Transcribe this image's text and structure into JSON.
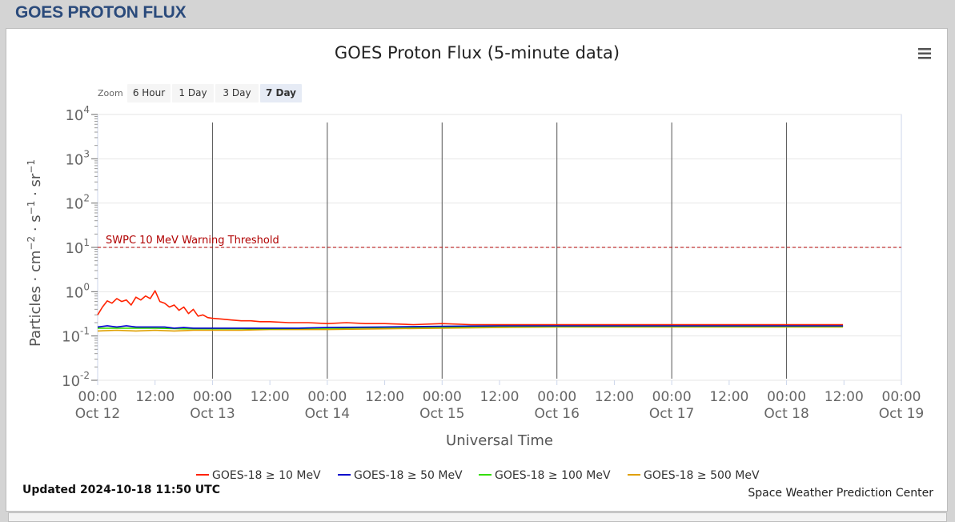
{
  "page": {
    "heading": "GOES PROTON FLUX"
  },
  "menu": {
    "icon": "hamburger-menu-icon"
  },
  "zoom": {
    "label": "Zoom",
    "buttons": [
      {
        "label": "6 Hour",
        "active": false
      },
      {
        "label": "1 Day",
        "active": false
      },
      {
        "label": "3 Day",
        "active": false
      },
      {
        "label": "7 Day",
        "active": true
      }
    ]
  },
  "footer": {
    "updated": "Updated 2024-10-18 11:50 UTC",
    "credit": "Space Weather Prediction Center"
  },
  "chart_data": {
    "type": "line",
    "title": "GOES Proton Flux (5-minute data)",
    "xlabel": "Universal Time",
    "ylabel_parts": {
      "base": "Particles · cm",
      "exp1": "−2",
      "mid1": " · s",
      "exp2": "−1",
      "mid2": " · sr",
      "exp3": "−1"
    },
    "y_scale": "log",
    "ylim": [
      0.01,
      10000
    ],
    "y_ticks": [
      {
        "base": "10",
        "exp": "-2",
        "value": 0.01
      },
      {
        "base": "10",
        "exp": "-1",
        "value": 0.1
      },
      {
        "base": "10",
        "exp": "0",
        "value": 1
      },
      {
        "base": "10",
        "exp": "1",
        "value": 10
      },
      {
        "base": "10",
        "exp": "2",
        "value": 100
      },
      {
        "base": "10",
        "exp": "3",
        "value": 1000
      },
      {
        "base": "10",
        "exp": "4",
        "value": 10000
      }
    ],
    "xlim": [
      "2024-10-12 00:00",
      "2024-10-19 00:00"
    ],
    "x_ticks": [
      {
        "time": "00:00",
        "date": "Oct 12",
        "hours": 0
      },
      {
        "time": "12:00",
        "date": "",
        "hours": 12
      },
      {
        "time": "00:00",
        "date": "Oct 13",
        "hours": 24
      },
      {
        "time": "12:00",
        "date": "",
        "hours": 36
      },
      {
        "time": "00:00",
        "date": "Oct 14",
        "hours": 48
      },
      {
        "time": "12:00",
        "date": "",
        "hours": 60
      },
      {
        "time": "00:00",
        "date": "Oct 15",
        "hours": 72
      },
      {
        "time": "12:00",
        "date": "",
        "hours": 84
      },
      {
        "time": "00:00",
        "date": "Oct 16",
        "hours": 96
      },
      {
        "time": "12:00",
        "date": "",
        "hours": 108
      },
      {
        "time": "00:00",
        "date": "Oct 17",
        "hours": 120
      },
      {
        "time": "12:00",
        "date": "",
        "hours": 132
      },
      {
        "time": "00:00",
        "date": "Oct 18",
        "hours": 144
      },
      {
        "time": "12:00",
        "date": "",
        "hours": 156
      },
      {
        "time": "00:00",
        "date": "Oct 19",
        "hours": 168
      }
    ],
    "threshold": {
      "label": "SWPC 10 MeV Warning Threshold",
      "value": 10,
      "color": "#b00000"
    },
    "legend_placement": "bottom-center",
    "series": [
      {
        "name": "GOES-18 ≥ 10 MeV",
        "color": "#ff2200",
        "points": [
          [
            0,
            0.3
          ],
          [
            1,
            0.45
          ],
          [
            2,
            0.62
          ],
          [
            3,
            0.55
          ],
          [
            4,
            0.7
          ],
          [
            5,
            0.6
          ],
          [
            6,
            0.65
          ],
          [
            7,
            0.5
          ],
          [
            8,
            0.75
          ],
          [
            9,
            0.65
          ],
          [
            10,
            0.8
          ],
          [
            11,
            0.7
          ],
          [
            12,
            1.05
          ],
          [
            13,
            0.6
          ],
          [
            14,
            0.55
          ],
          [
            15,
            0.45
          ],
          [
            16,
            0.5
          ],
          [
            17,
            0.38
          ],
          [
            18,
            0.45
          ],
          [
            19,
            0.32
          ],
          [
            20,
            0.4
          ],
          [
            21,
            0.28
          ],
          [
            22,
            0.3
          ],
          [
            23,
            0.26
          ],
          [
            24,
            0.25
          ],
          [
            26,
            0.24
          ],
          [
            28,
            0.23
          ],
          [
            30,
            0.22
          ],
          [
            32,
            0.22
          ],
          [
            34,
            0.21
          ],
          [
            36,
            0.21
          ],
          [
            40,
            0.2
          ],
          [
            44,
            0.2
          ],
          [
            48,
            0.19
          ],
          [
            52,
            0.2
          ],
          [
            56,
            0.19
          ],
          [
            60,
            0.19
          ],
          [
            66,
            0.18
          ],
          [
            72,
            0.19
          ],
          [
            78,
            0.18
          ],
          [
            84,
            0.18
          ],
          [
            90,
            0.18
          ],
          [
            96,
            0.18
          ],
          [
            102,
            0.18
          ],
          [
            108,
            0.18
          ],
          [
            114,
            0.18
          ],
          [
            120,
            0.18
          ],
          [
            126,
            0.18
          ],
          [
            132,
            0.18
          ],
          [
            138,
            0.18
          ],
          [
            144,
            0.18
          ],
          [
            150,
            0.18
          ],
          [
            155.8,
            0.18
          ]
        ]
      },
      {
        "name": "GOES-18 ≥ 50 MeV",
        "color": "#0000cc",
        "points": [
          [
            0,
            0.16
          ],
          [
            2,
            0.17
          ],
          [
            4,
            0.16
          ],
          [
            6,
            0.17
          ],
          [
            8,
            0.16
          ],
          [
            10,
            0.16
          ],
          [
            12,
            0.16
          ],
          [
            14,
            0.16
          ],
          [
            16,
            0.15
          ],
          [
            18,
            0.155
          ],
          [
            20,
            0.15
          ],
          [
            24,
            0.15
          ],
          [
            30,
            0.15
          ],
          [
            36,
            0.15
          ],
          [
            42,
            0.15
          ],
          [
            48,
            0.155
          ],
          [
            60,
            0.16
          ],
          [
            72,
            0.165
          ],
          [
            84,
            0.17
          ],
          [
            96,
            0.17
          ],
          [
            108,
            0.17
          ],
          [
            120,
            0.17
          ],
          [
            132,
            0.17
          ],
          [
            144,
            0.17
          ],
          [
            155.8,
            0.17
          ]
        ]
      },
      {
        "name": "GOES-18 ≥ 100 MeV",
        "color": "#33dd00",
        "points": [
          [
            0,
            0.15
          ],
          [
            6,
            0.15
          ],
          [
            12,
            0.15
          ],
          [
            18,
            0.145
          ],
          [
            24,
            0.145
          ],
          [
            36,
            0.145
          ],
          [
            48,
            0.15
          ],
          [
            60,
            0.155
          ],
          [
            72,
            0.16
          ],
          [
            84,
            0.165
          ],
          [
            96,
            0.165
          ],
          [
            108,
            0.165
          ],
          [
            120,
            0.165
          ],
          [
            132,
            0.165
          ],
          [
            144,
            0.165
          ],
          [
            155.8,
            0.165
          ]
        ]
      },
      {
        "name": "GOES-18 ≥ 500 MeV",
        "color": "#e0a000",
        "points": [
          [
            0,
            0.13
          ],
          [
            4,
            0.135
          ],
          [
            8,
            0.13
          ],
          [
            12,
            0.135
          ],
          [
            16,
            0.13
          ],
          [
            20,
            0.135
          ],
          [
            24,
            0.135
          ],
          [
            30,
            0.135
          ],
          [
            36,
            0.14
          ],
          [
            42,
            0.14
          ],
          [
            48,
            0.14
          ],
          [
            60,
            0.145
          ],
          [
            72,
            0.15
          ],
          [
            84,
            0.155
          ],
          [
            96,
            0.16
          ],
          [
            108,
            0.16
          ],
          [
            120,
            0.16
          ],
          [
            132,
            0.16
          ],
          [
            144,
            0.16
          ],
          [
            155.8,
            0.16
          ]
        ]
      }
    ]
  }
}
